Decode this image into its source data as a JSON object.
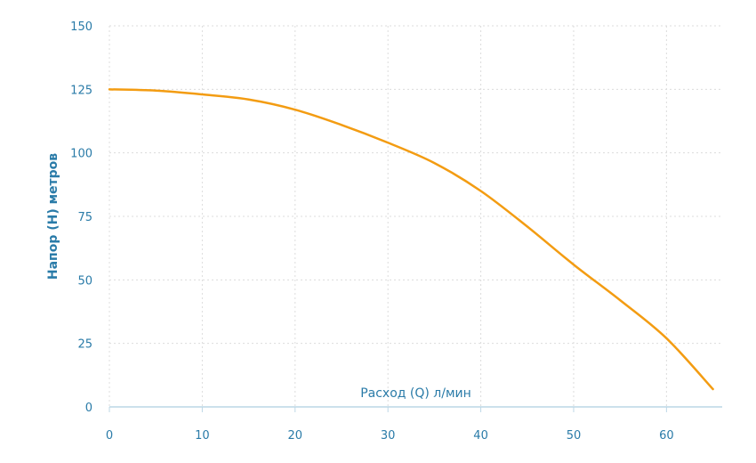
{
  "colors": {
    "series": "#f39c12",
    "axis_text": "#2a7ba8",
    "grid": "#dcdcdc",
    "axis_line": "#bcd7e6"
  },
  "chart_data": {
    "type": "line",
    "title": "",
    "xlabel": "Расход (Q) л/мин",
    "ylabel": "Напор (H) метров",
    "xlim": [
      0,
      66
    ],
    "ylim": [
      0,
      150
    ],
    "x_ticks": [
      0,
      10,
      20,
      30,
      40,
      50,
      60
    ],
    "y_ticks": [
      0,
      25,
      50,
      75,
      100,
      125,
      150
    ],
    "grid": true,
    "series": [
      {
        "x": [
          0,
          5,
          10,
          15,
          20,
          25,
          30,
          35,
          40,
          45,
          50,
          55,
          60,
          65
        ],
        "values": [
          125,
          124.5,
          123,
          121,
          117,
          111,
          104,
          96,
          85,
          71,
          56,
          42,
          27,
          7
        ]
      }
    ]
  }
}
